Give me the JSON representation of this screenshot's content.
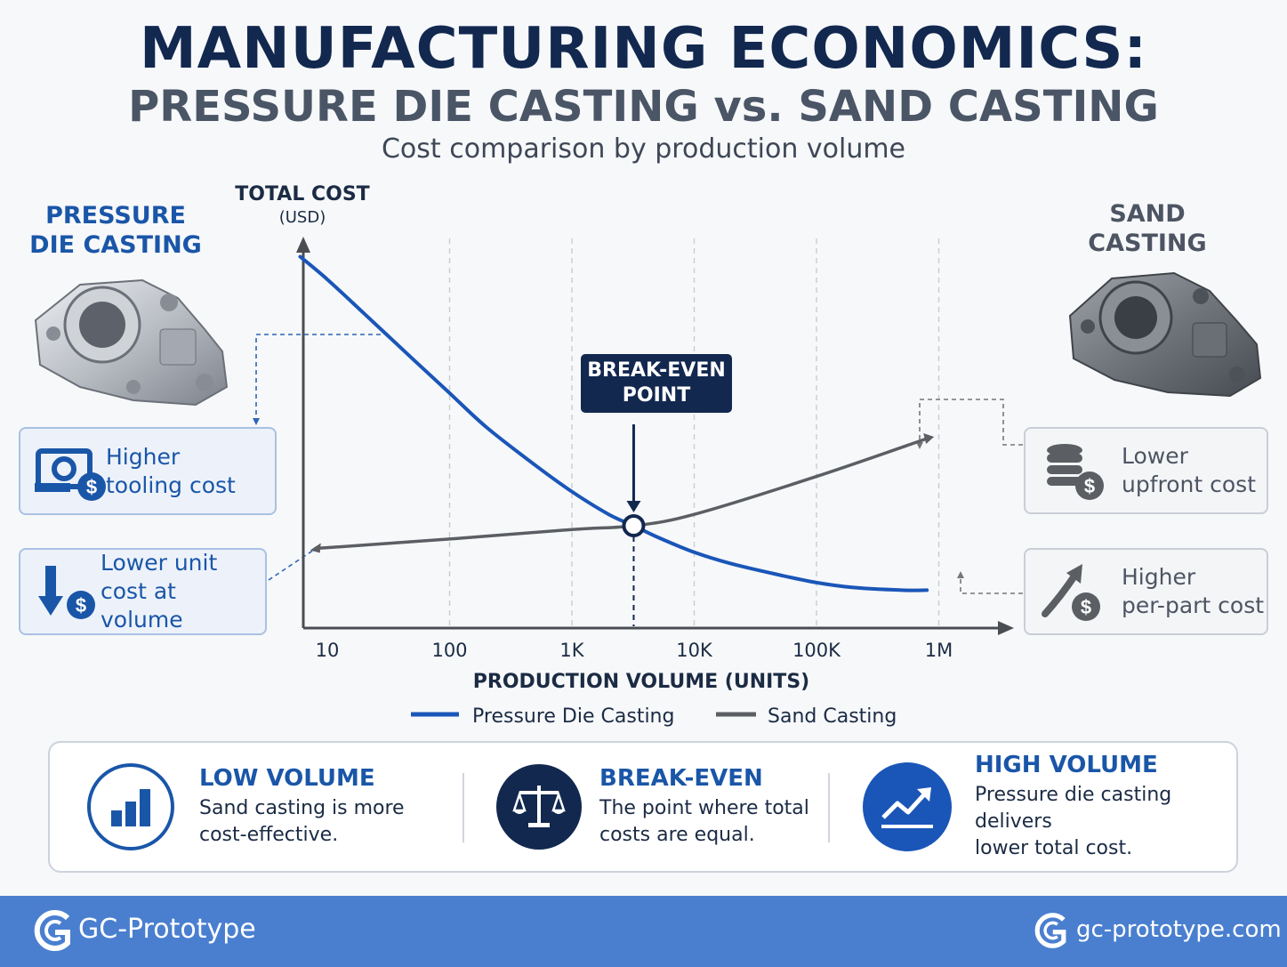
{
  "header": {
    "title": "MANUFACTURING ECONOMICS:",
    "subtitle": "PRESSURE DIE CASTING vs. SAND CASTING",
    "tagline": "Cost comparison by production volume"
  },
  "left_panel": {
    "title_line1": "PRESSURE",
    "title_line2": "DIE CASTING",
    "callouts": [
      {
        "line1": "Higher",
        "line2": "tooling cost",
        "icon": "tooling-cost-icon"
      },
      {
        "line1": "Lower unit",
        "line2": "cost at volume",
        "icon": "down-arrow-dollar-icon"
      }
    ]
  },
  "right_panel": {
    "title_line1": "SAND",
    "title_line2": "CASTING",
    "callouts": [
      {
        "line1": "Lower",
        "line2": "upfront cost",
        "icon": "coin-stack-dollar-icon"
      },
      {
        "line1": "Higher",
        "line2": "per-part cost",
        "icon": "up-arrow-dollar-icon"
      }
    ]
  },
  "chart_data": {
    "type": "line",
    "x_scale": "log",
    "ylabel_line1": "TOTAL COST",
    "ylabel_line2": "(USD)",
    "xlabel": "PRODUCTION VOLUME (UNITS)",
    "x_tick_labels": [
      "10",
      "100",
      "1K",
      "10K",
      "100K",
      "1M"
    ],
    "x_ticks": [
      10,
      100,
      1000,
      10000,
      100000,
      1000000
    ],
    "y_tick_labels": [],
    "grid": "vertical-dashed",
    "legend_placement": "bottom",
    "series": [
      {
        "name": "Pressure Die Casting",
        "color": "#1a56b8",
        "x": [
          6,
          10,
          20,
          50,
          100,
          200,
          500,
          1000,
          2000,
          3200,
          5000,
          10000,
          20000,
          50000,
          100000,
          200000,
          500000,
          800000
        ],
        "y": [
          0.98,
          0.92,
          0.83,
          0.71,
          0.62,
          0.53,
          0.43,
          0.36,
          0.3,
          0.27,
          0.24,
          0.2,
          0.17,
          0.14,
          0.12,
          0.107,
          0.1,
          0.1
        ]
      },
      {
        "name": "Sand Casting",
        "color": "#5b5e63",
        "x": [
          8,
          100,
          1000,
          3200,
          10000,
          100000,
          800000
        ],
        "y": [
          0.21,
          0.235,
          0.26,
          0.27,
          0.3,
          0.4,
          0.5
        ]
      }
    ],
    "annotations": [
      {
        "label_line1": "BREAK-EVEN",
        "label_line2": "POINT",
        "x": 3200,
        "y": 0.27
      }
    ]
  },
  "summary": [
    {
      "heading": "LOW VOLUME",
      "line1": "Sand casting is more",
      "line2": "cost-effective.",
      "icon": "bar-chart-icon"
    },
    {
      "heading": "BREAK-EVEN",
      "line1": "The point where total",
      "line2": "costs are equal.",
      "icon": "balance-scale-icon"
    },
    {
      "heading": "HIGH VOLUME",
      "line1": "Pressure die casting delivers",
      "line2": "lower total cost.",
      "icon": "trend-up-icon"
    }
  ],
  "footer": {
    "brand": "GC-Prototype",
    "site": "gc-prototype.com"
  },
  "colors": {
    "navy": "#12284f",
    "blue": "#1a56b8",
    "gray": "#5b5e63",
    "footer": "#4a7fd0"
  }
}
